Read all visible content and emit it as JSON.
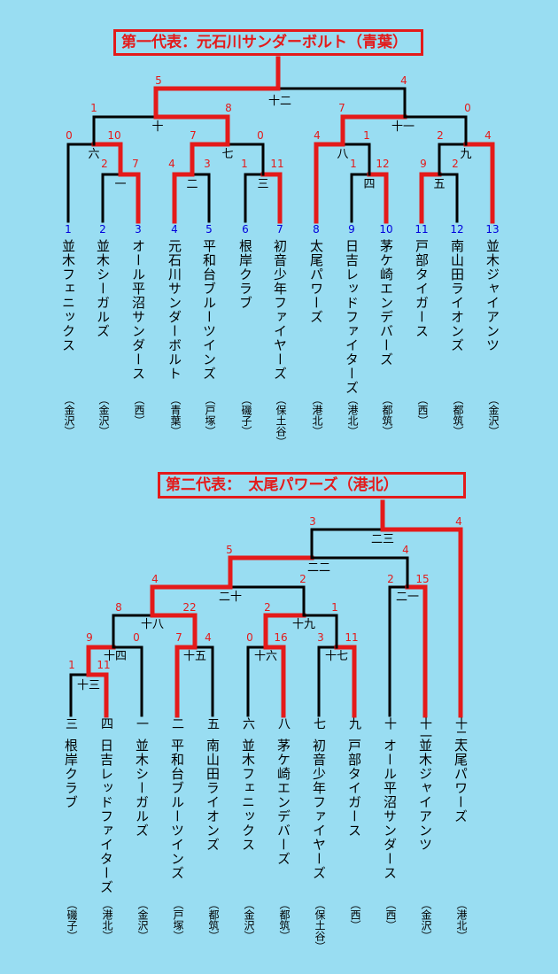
{
  "colors": {
    "background": "#99ddf2",
    "win": "#e41a1a",
    "line": "#000000",
    "seed": "#0000dd"
  },
  "bracket1": {
    "title": "第一代表：元石川サンダーボルト（青葉）",
    "teams": [
      {
        "seed": "1",
        "name": "並木フェニックス",
        "region": "（金沢）"
      },
      {
        "seed": "2",
        "name": "並木シーガルズ",
        "region": "（金沢）"
      },
      {
        "seed": "3",
        "name": "オール平沼サンダース",
        "region": "（西）"
      },
      {
        "seed": "4",
        "name": "元石川サンダーボルト",
        "region": "（青葉）"
      },
      {
        "seed": "5",
        "name": "平和台ブルーツインズ",
        "region": "（戸塚）"
      },
      {
        "seed": "6",
        "name": "根岸クラブ",
        "region": "（磯子）"
      },
      {
        "seed": "7",
        "name": "初音少年ファイヤーズ",
        "region": "（保土谷）"
      },
      {
        "seed": "8",
        "name": "太尾パワーズ",
        "region": "（港北）"
      },
      {
        "seed": "9",
        "name": "日吉レッドファイターズ",
        "region": "（港北）"
      },
      {
        "seed": "10",
        "name": "茅ケ崎エンデバーズ",
        "region": "（都筑）"
      },
      {
        "seed": "11",
        "name": "戸部タイガース",
        "region": "（西）"
      },
      {
        "seed": "12",
        "name": "南山田ライオンズ",
        "region": "（都筑）"
      },
      {
        "seed": "13",
        "name": "並木ジャイアンツ",
        "region": "（金沢）"
      }
    ],
    "games": [
      {
        "no": "一",
        "scores": [
          "2",
          "7"
        ]
      },
      {
        "no": "二",
        "scores": [
          "4",
          "3"
        ]
      },
      {
        "no": "三",
        "scores": [
          "1",
          "11"
        ]
      },
      {
        "no": "四",
        "scores": [
          "1",
          "12"
        ]
      },
      {
        "no": "五",
        "scores": [
          "9",
          "2"
        ]
      },
      {
        "no": "六",
        "scores": [
          "0",
          "10"
        ]
      },
      {
        "no": "七",
        "scores": [
          "7",
          "0"
        ]
      },
      {
        "no": "八",
        "scores": [
          "4",
          "1"
        ]
      },
      {
        "no": "九",
        "scores": [
          "2",
          "4"
        ]
      },
      {
        "no": "十",
        "scores": [
          "1",
          "8"
        ]
      },
      {
        "no": "十一",
        "scores": [
          "7",
          "0"
        ]
      },
      {
        "no": "十二",
        "scores": [
          "5",
          "4"
        ]
      }
    ]
  },
  "bracket2": {
    "title": "第二代表：　太尾パワーズ（港北）",
    "teams": [
      {
        "game": "三",
        "name": "根岸クラブ",
        "region": "（磯子）"
      },
      {
        "game": "四",
        "name": "日吉レッドファイターズ",
        "region": "（港北）"
      },
      {
        "game": "一",
        "name": "並木シーガルズ",
        "region": "（金沢）"
      },
      {
        "game": "二",
        "name": "平和台ブルーツインズ",
        "region": "（戸塚）"
      },
      {
        "game": "五",
        "name": "南山田ライオンズ",
        "region": "（都筑）"
      },
      {
        "game": "六",
        "name": "並木フェニックス",
        "region": "（金沢）"
      },
      {
        "game": "八",
        "name": "茅ケ崎エンデバーズ",
        "region": "（都筑）"
      },
      {
        "game": "七",
        "name": "初音少年ファイヤーズ",
        "region": "（保土谷）"
      },
      {
        "game": "九",
        "name": "戸部タイガース",
        "region": "（西）"
      },
      {
        "game": "十",
        "name": "オール平沼サンダース",
        "region": "（西）"
      },
      {
        "game": "十一",
        "name": "並木ジャイアンツ",
        "region": "（金沢）"
      },
      {
        "game": "十二",
        "name": "太尾パワーズ",
        "region": "（港北）"
      }
    ],
    "games": [
      {
        "no": "十三",
        "scores": [
          "1",
          "11"
        ]
      },
      {
        "no": "十四",
        "scores": [
          "9",
          "0"
        ]
      },
      {
        "no": "十五",
        "scores": [
          "7",
          "4"
        ]
      },
      {
        "no": "十六",
        "scores": [
          "0",
          "16"
        ]
      },
      {
        "no": "十七",
        "scores": [
          "3",
          "11"
        ]
      },
      {
        "no": "十八",
        "scores": [
          "8",
          "22"
        ]
      },
      {
        "no": "十九",
        "scores": [
          "2",
          "1"
        ]
      },
      {
        "no": "二十",
        "scores": [
          "4",
          "2"
        ]
      },
      {
        "no": "二一",
        "scores": [
          "2",
          "15"
        ]
      },
      {
        "no": "二二",
        "scores": [
          "5",
          "4"
        ]
      },
      {
        "no": "二三",
        "scores": [
          "3",
          "4"
        ]
      }
    ]
  }
}
